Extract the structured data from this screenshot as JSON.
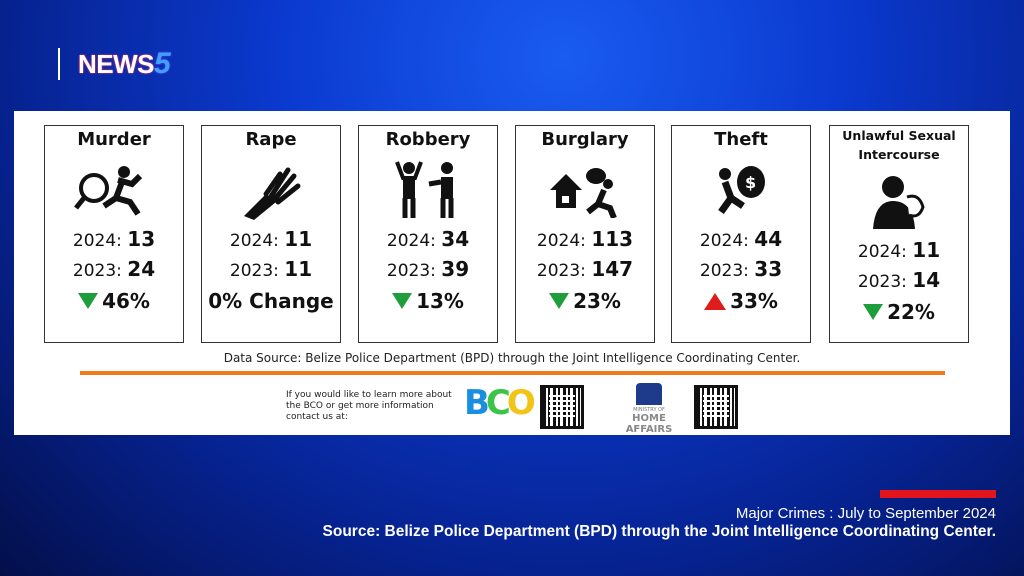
{
  "brand": {
    "logo": "NEWS",
    "logo_num": "5"
  },
  "cards": [
    {
      "title": "Murder",
      "icon": "murder-icon",
      "y2024_label": "2024:",
      "y2024": "13",
      "y2023_label": "2023:",
      "y2023": "24",
      "change": "46%",
      "direction": "down"
    },
    {
      "title": "Rape",
      "icon": "rape-icon",
      "y2024_label": "2024:",
      "y2024": "11",
      "y2023_label": "2023:",
      "y2023": "11",
      "change": "0% Change",
      "direction": "none"
    },
    {
      "title": "Robbery",
      "icon": "robbery-icon",
      "y2024_label": "2024:",
      "y2024": "34",
      "y2023_label": "2023:",
      "y2023": "39",
      "change": "13%",
      "direction": "down"
    },
    {
      "title": "Burglary",
      "icon": "burglary-icon",
      "y2024_label": "2024:",
      "y2024": "113",
      "y2023_label": "2023:",
      "y2023": "147",
      "change": "23%",
      "direction": "down"
    },
    {
      "title": "Theft",
      "icon": "theft-icon",
      "y2024_label": "2024:",
      "y2024": "44",
      "y2023_label": "2023:",
      "y2023": "33",
      "change": "33%",
      "direction": "up"
    },
    {
      "title": "Unlawful Sexual Intercourse",
      "icon": "unlawful-sexual-intercourse-icon",
      "y2024_label": "2024:",
      "y2024": "11",
      "y2023_label": "2023:",
      "y2023": "14",
      "change": "22%",
      "direction": "down"
    }
  ],
  "data_source": "Data Source: Belize Police Department (BPD) through the Joint Intelligence Coordinating Center.",
  "footer": {
    "info": "If you would like to learn more about the BCO or get more information contact us at:",
    "bco_logo": "BCO",
    "ministry_small": "MINISTRY OF",
    "ministry": "HOME AFFAIRS"
  },
  "caption": {
    "line1": "Major Crimes : July to September 2024",
    "line2": "Source: Belize Police Department (BPD) through the Joint Intelligence Coordinating Center."
  },
  "colors": {
    "down": "#1e9e3a",
    "up": "#e01b1b",
    "accent_orange": "#f07b1d",
    "caption_bar": "#e3141b"
  }
}
